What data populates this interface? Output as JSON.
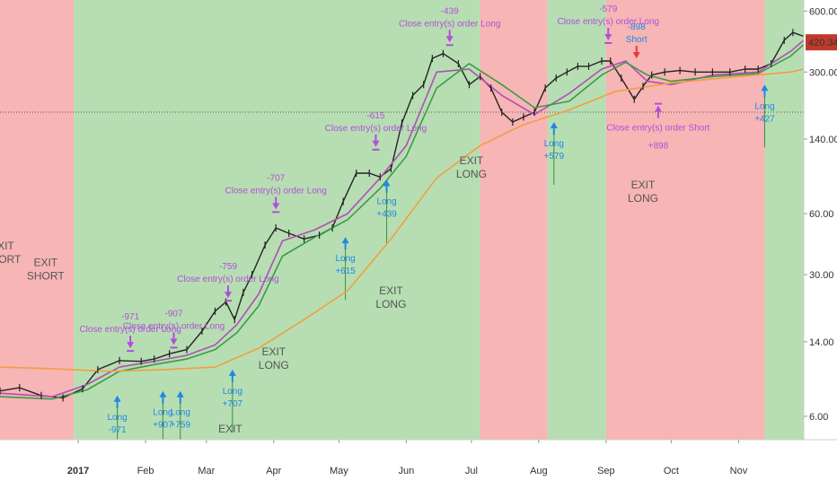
{
  "chart_data": {
    "type": "line",
    "y_scale": "log",
    "ylim": [
      4.6,
      680
    ],
    "y_ticks": [
      "600.00",
      "300.00",
      "140.00",
      "60.00",
      "30.00",
      "14.00",
      "6.00"
    ],
    "y_tick_values": [
      600,
      300,
      140,
      60,
      30,
      14,
      6
    ],
    "x_ticks": [
      "2017",
      "Feb",
      "Mar",
      "Apr",
      "May",
      "Jun",
      "Jul",
      "Aug",
      "Sep",
      "Oct",
      "Nov"
    ],
    "x_tick_dates": [
      "2017-01-01",
      "2017-02-01",
      "2017-03-01",
      "2017-04-01",
      "2017-05-01",
      "2017-06-01",
      "2017-07-01",
      "2017-08-01",
      "2017-09-01",
      "2017-10-01",
      "2017-11-01"
    ],
    "xlim": [
      "2016-11-26",
      "2017-12-01"
    ],
    "last_price_label": "420.34",
    "colors": {
      "long_zone": "#b7deb3",
      "short_zone": "#f7b5b5",
      "price": "#222222",
      "ma_fast": "#b04fb4",
      "ma_mid": "#3e9a48",
      "ma_slow": "#f0a040",
      "long_marker": "#1e88e5",
      "close_marker": "#b24fd6",
      "short_marker": "#e53935",
      "price_tag": "#c0392b"
    },
    "zones": [
      {
        "start": "2016-11-26",
        "end": "2016-12-30",
        "type": "short"
      },
      {
        "start": "2016-12-30",
        "end": "2017-07-05",
        "type": "long"
      },
      {
        "start": "2017-07-05",
        "end": "2017-08-05",
        "type": "short"
      },
      {
        "start": "2017-08-05",
        "end": "2017-09-01",
        "type": "long"
      },
      {
        "start": "2017-09-01",
        "end": "2017-11-13",
        "type": "short"
      },
      {
        "start": "2017-11-13",
        "end": "2017-12-01",
        "type": "long"
      }
    ],
    "series": [
      {
        "name": "",
        "role": "price",
        "x": [
          "2016-11-26",
          "2016-12-05",
          "2016-12-15",
          "2016-12-25",
          "2017-01-03",
          "2017-01-10",
          "2017-01-20",
          "2017-01-30",
          "2017-02-05",
          "2017-02-12",
          "2017-02-20",
          "2017-02-27",
          "2017-03-05",
          "2017-03-10",
          "2017-03-14",
          "2017-03-18",
          "2017-03-22",
          "2017-03-28",
          "2017-04-02",
          "2017-04-08",
          "2017-04-15",
          "2017-04-22",
          "2017-04-28",
          "2017-05-03",
          "2017-05-09",
          "2017-05-15",
          "2017-05-20",
          "2017-05-25",
          "2017-05-30",
          "2017-06-04",
          "2017-06-09",
          "2017-06-13",
          "2017-06-18",
          "2017-06-25",
          "2017-06-30",
          "2017-07-05",
          "2017-07-10",
          "2017-07-15",
          "2017-07-20",
          "2017-07-25",
          "2017-07-30",
          "2017-08-04",
          "2017-08-09",
          "2017-08-14",
          "2017-08-19",
          "2017-08-24",
          "2017-08-30",
          "2017-09-03",
          "2017-09-08",
          "2017-09-14",
          "2017-09-18",
          "2017-09-22",
          "2017-09-28",
          "2017-10-05",
          "2017-10-12",
          "2017-10-20",
          "2017-10-28",
          "2017-11-04",
          "2017-11-10",
          "2017-11-16",
          "2017-11-22",
          "2017-11-26",
          "2017-12-01"
        ],
        "values": [
          8.0,
          8.3,
          7.6,
          7.4,
          8.2,
          10.2,
          11.3,
          11.2,
          11.5,
          12.2,
          12.8,
          15.8,
          19.8,
          22.0,
          18.0,
          24.5,
          30.0,
          42.0,
          51.0,
          48.0,
          45.0,
          47.0,
          51.0,
          69.0,
          95.0,
          95.0,
          91.0,
          100.0,
          168.0,
          230.0,
          260.0,
          350.0,
          370.0,
          330.0,
          260.0,
          285.0,
          250.0,
          190.0,
          170.0,
          180.0,
          190.0,
          250.0,
          280.0,
          300.0,
          320.0,
          320.0,
          340.0,
          340.0,
          280.0,
          220.0,
          255.0,
          290.0,
          300.0,
          305.0,
          300.0,
          300.0,
          300.0,
          310.0,
          310.0,
          330.0,
          430.0,
          470.0,
          450.0
        ]
      },
      {
        "name": "",
        "role": "ma_fast",
        "x": [
          "2016-11-26",
          "2016-12-20",
          "2017-01-05",
          "2017-01-20",
          "2017-02-05",
          "2017-02-20",
          "2017-03-05",
          "2017-03-15",
          "2017-03-25",
          "2017-04-05",
          "2017-04-20",
          "2017-05-05",
          "2017-05-20",
          "2017-06-01",
          "2017-06-15",
          "2017-06-30",
          "2017-07-15",
          "2017-07-30",
          "2017-08-15",
          "2017-08-30",
          "2017-09-10",
          "2017-09-20",
          "2017-10-01",
          "2017-10-20",
          "2017-11-10",
          "2017-11-25",
          "2017-12-01"
        ],
        "values": [
          7.8,
          7.5,
          8.6,
          10.5,
          11.2,
          12.0,
          13.5,
          17.0,
          24.0,
          44.0,
          50.0,
          60.0,
          90.0,
          130.0,
          300.0,
          310.0,
          230.0,
          185.0,
          235.0,
          310.0,
          340.0,
          270.0,
          260.0,
          290.0,
          300.0,
          380.0,
          430.0
        ]
      },
      {
        "name": "",
        "role": "ma_mid",
        "x": [
          "2016-11-26",
          "2016-12-20",
          "2017-01-05",
          "2017-01-20",
          "2017-02-05",
          "2017-02-20",
          "2017-03-05",
          "2017-03-15",
          "2017-03-25",
          "2017-04-05",
          "2017-04-20",
          "2017-05-05",
          "2017-05-20",
          "2017-06-01",
          "2017-06-15",
          "2017-06-30",
          "2017-07-15",
          "2017-07-30",
          "2017-08-15",
          "2017-08-30",
          "2017-09-10",
          "2017-09-20",
          "2017-10-01",
          "2017-10-20",
          "2017-11-10",
          "2017-11-25",
          "2017-12-01"
        ],
        "values": [
          7.5,
          7.3,
          8.1,
          10.0,
          10.8,
          11.5,
          12.8,
          15.5,
          21.0,
          37.0,
          46.0,
          56.0,
          80.0,
          115.0,
          250.0,
          330.0,
          260.0,
          200.0,
          215.0,
          290.0,
          335.0,
          290.0,
          270.0,
          285.0,
          295.0,
          360.0,
          410.0
        ]
      },
      {
        "name": "",
        "role": "ma_slow",
        "x": [
          "2016-11-26",
          "2016-12-20",
          "2017-01-15",
          "2017-02-10",
          "2017-03-05",
          "2017-03-25",
          "2017-04-15",
          "2017-05-05",
          "2017-05-25",
          "2017-06-15",
          "2017-07-05",
          "2017-07-25",
          "2017-08-15",
          "2017-09-05",
          "2017-10-01",
          "2017-11-01",
          "2017-11-25",
          "2017-12-01"
        ],
        "values": [
          10.5,
          10.3,
          10.0,
          10.2,
          10.5,
          13.0,
          18.0,
          25.0,
          45.0,
          90.0,
          130.0,
          165.0,
          195.0,
          240.0,
          265.0,
          285.0,
          300.0,
          310.0
        ]
      }
    ],
    "markers": [
      {
        "kind": "long",
        "date": "2017-01-19",
        "price": 7.6,
        "texts": [
          "Long",
          "-971"
        ]
      },
      {
        "kind": "long",
        "date": "2017-02-09",
        "price": 8.0,
        "texts": [
          "Long",
          "+907"
        ]
      },
      {
        "kind": "long",
        "date": "2017-02-17",
        "price": 8.0,
        "texts": [
          "Long",
          "+759"
        ]
      },
      {
        "kind": "long",
        "date": "2017-03-13",
        "price": 10.2,
        "texts": [
          "Long",
          "+707"
        ]
      },
      {
        "kind": "long",
        "date": "2017-05-04",
        "price": 46.0,
        "texts": [
          "Long",
          "+615"
        ]
      },
      {
        "kind": "long",
        "date": "2017-05-23",
        "price": 88.0,
        "texts": [
          "Long",
          "+439"
        ]
      },
      {
        "kind": "long",
        "date": "2017-08-08",
        "price": 170.0,
        "texts": [
          "Long",
          "+579"
        ]
      },
      {
        "kind": "long",
        "date": "2017-11-13",
        "price": 260.0,
        "texts": [
          "Long",
          "+427"
        ]
      },
      {
        "kind": "close",
        "date": "2017-01-25",
        "price": 13.0,
        "texts": [
          "-971",
          "Close entry(s) order Long"
        ]
      },
      {
        "kind": "close",
        "date": "2017-02-14",
        "price": 13.5,
        "texts": [
          "-907",
          "Close entry(s) order Long"
        ]
      },
      {
        "kind": "close",
        "date": "2017-03-11",
        "price": 23.0,
        "texts": [
          "-759",
          "Close entry(s) order Long"
        ]
      },
      {
        "kind": "close",
        "date": "2017-04-02",
        "price": 63.0,
        "texts": [
          "-707",
          "Close entry(s) order Long"
        ]
      },
      {
        "kind": "close",
        "date": "2017-05-18",
        "price": 128.0,
        "texts": [
          "-615",
          "Close entry(s) order Long"
        ]
      },
      {
        "kind": "close",
        "date": "2017-06-21",
        "price": 420.0,
        "texts": [
          "-439",
          "Close entry(s) order Long"
        ]
      },
      {
        "kind": "close",
        "date": "2017-09-02",
        "price": 430.0,
        "texts": [
          "-579",
          "Close entry(s) order Long"
        ]
      },
      {
        "kind": "close_short",
        "date": "2017-09-25",
        "price": 205.0,
        "texts": [
          "Close entry(s) order Short",
          "+898"
        ]
      },
      {
        "kind": "short",
        "date": "2017-09-15",
        "price": 350.0,
        "texts": [
          "-898",
          "Short"
        ]
      }
    ],
    "exit_labels": [
      {
        "date": "2016-11-27",
        "price": 40.0,
        "text": [
          "EXIT",
          "SHORT"
        ]
      },
      {
        "date": "2016-12-17",
        "price": 33.0,
        "text": [
          "EXIT",
          "SHORT"
        ]
      },
      {
        "date": "2017-03-12",
        "price": 5.0,
        "text": [
          "EXIT"
        ]
      },
      {
        "date": "2017-04-01",
        "price": 12.0,
        "text": [
          "EXIT",
          "LONG"
        ]
      },
      {
        "date": "2017-05-25",
        "price": 24.0,
        "text": [
          "EXIT",
          "LONG"
        ]
      },
      {
        "date": "2017-07-01",
        "price": 105.0,
        "text": [
          "EXIT",
          "LONG"
        ]
      },
      {
        "date": "2017-09-18",
        "price": 80.0,
        "text": [
          "EXIT",
          "LONG"
        ]
      }
    ]
  }
}
